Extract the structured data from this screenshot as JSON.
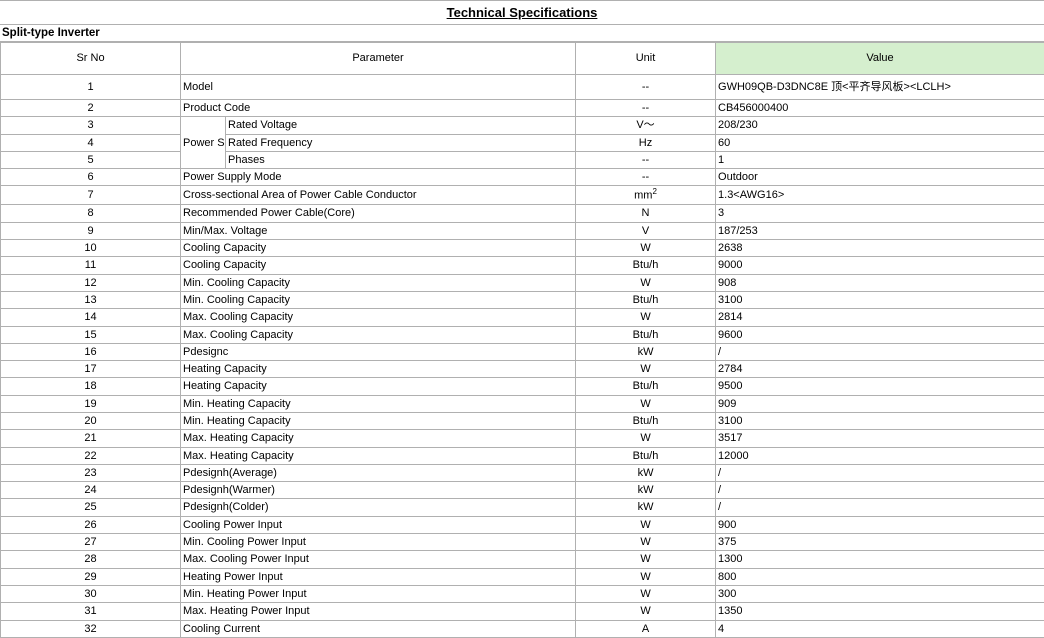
{
  "title": "Technical Specifications",
  "subtitle": "Split-type Inverter",
  "headers": {
    "srno": "Sr No",
    "parameter": "Parameter",
    "unit": "Unit",
    "value": "Value"
  },
  "colors": {
    "header_value_bg": "#d5efce",
    "border": "#b0b0b0",
    "bg": "#ffffff",
    "text": "#000000"
  },
  "group_label": "Power Supply",
  "rows": [
    {
      "n": "1",
      "param": "Model",
      "unit": "--",
      "value": "GWH09QB-D3DNC8E 顶<平齐导风板><LCLH>",
      "tall": true
    },
    {
      "n": "2",
      "param": "Product Code",
      "unit": "--",
      "value": "CB456000400"
    },
    {
      "n": "3",
      "param": "Rated Voltage",
      "unit": "V～",
      "value": "208/230",
      "grouped": true
    },
    {
      "n": "4",
      "param": "Rated Frequency",
      "unit": "Hz",
      "value": "60",
      "grouped": true
    },
    {
      "n": "5",
      "param": "Phases",
      "unit": "--",
      "value": "1",
      "grouped": true
    },
    {
      "n": "6",
      "param": "Power Supply Mode",
      "unit": "--",
      "value": "Outdoor"
    },
    {
      "n": "7",
      "param": "Cross-sectional Area of Power Cable Conductor",
      "unit": "mm²",
      "value": "1.3<AWG16>",
      "unit_sup": true
    },
    {
      "n": "8",
      "param": "Recommended Power Cable(Core)",
      "unit": "N",
      "value": "3"
    },
    {
      "n": "9",
      "param": "Min/Max. Voltage",
      "unit": "V",
      "value": "187/253"
    },
    {
      "n": "10",
      "param": "Cooling Capacity",
      "unit": "W",
      "value": "2638"
    },
    {
      "n": "11",
      "param": "Cooling Capacity",
      "unit": "Btu/h",
      "value": "9000"
    },
    {
      "n": "12",
      "param": "Min. Cooling Capacity",
      "unit": "W",
      "value": "908"
    },
    {
      "n": "13",
      "param": "Min. Cooling Capacity",
      "unit": "Btu/h",
      "value": "3100"
    },
    {
      "n": "14",
      "param": "Max. Cooling Capacity",
      "unit": "W",
      "value": "2814"
    },
    {
      "n": "15",
      "param": "Max. Cooling Capacity",
      "unit": "Btu/h",
      "value": "9600"
    },
    {
      "n": "16",
      "param": "Pdesignc",
      "unit": "kW",
      "value": "/"
    },
    {
      "n": "17",
      "param": "Heating Capacity",
      "unit": "W",
      "value": "2784"
    },
    {
      "n": "18",
      "param": "Heating Capacity",
      "unit": "Btu/h",
      "value": "9500"
    },
    {
      "n": "19",
      "param": "Min. Heating Capacity",
      "unit": "W",
      "value": "909"
    },
    {
      "n": "20",
      "param": "Min. Heating Capacity",
      "unit": "Btu/h",
      "value": "3100"
    },
    {
      "n": "21",
      "param": "Max. Heating Capacity",
      "unit": "W",
      "value": "3517"
    },
    {
      "n": "22",
      "param": "Max. Heating Capacity",
      "unit": "Btu/h",
      "value": "12000"
    },
    {
      "n": "23",
      "param": "Pdesignh(Average)",
      "unit": "kW",
      "value": "/"
    },
    {
      "n": "24",
      "param": "Pdesignh(Warmer)",
      "unit": "kW",
      "value": "/"
    },
    {
      "n": "25",
      "param": "Pdesignh(Colder)",
      "unit": "kW",
      "value": "/"
    },
    {
      "n": "26",
      "param": "Cooling Power Input",
      "unit": "W",
      "value": "900"
    },
    {
      "n": "27",
      "param": "Min. Cooling Power Input",
      "unit": "W",
      "value": "375"
    },
    {
      "n": "28",
      "param": "Max. Cooling Power Input",
      "unit": "W",
      "value": "1300"
    },
    {
      "n": "29",
      "param": "Heating Power Input",
      "unit": "W",
      "value": "800"
    },
    {
      "n": "30",
      "param": "Min. Heating Power Input",
      "unit": "W",
      "value": "300"
    },
    {
      "n": "31",
      "param": "Max. Heating Power Input",
      "unit": "W",
      "value": "1350"
    },
    {
      "n": "32",
      "param": "Cooling Current",
      "unit": "A",
      "value": "4"
    }
  ]
}
